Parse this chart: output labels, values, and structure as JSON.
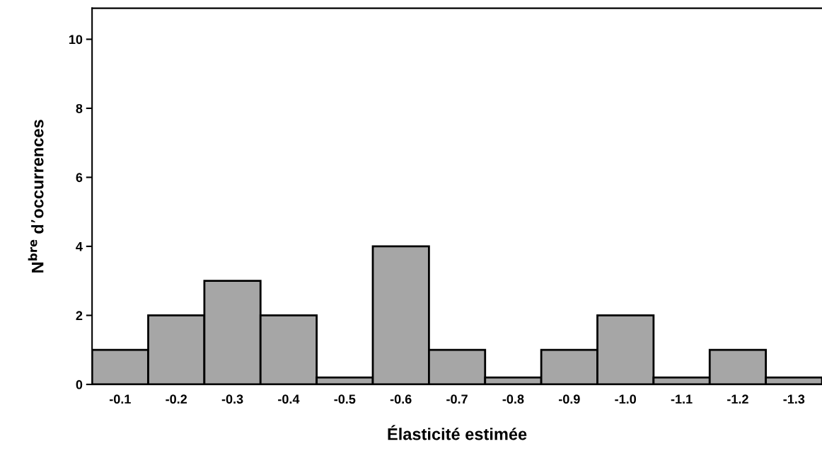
{
  "chart_data": {
    "type": "bar",
    "xlabel": "Élasticité estimée",
    "ylabel": "N$^{bre}$ d’occurrences",
    "categories": [
      "-0.1",
      "-0.2",
      "-0.3",
      "-0.4",
      "-0.5",
      "-0.6",
      "-0.7",
      "-0.8",
      "-0.9",
      "-1.0",
      "-1.1",
      "-1.2",
      "-1.3"
    ],
    "values": [
      1,
      2,
      3,
      2,
      0.2,
      4,
      1,
      0.2,
      1,
      2,
      0.2,
      1,
      0.2
    ],
    "color": "#a6a6a6",
    "ylim": [
      0,
      10.9
    ],
    "yticks": [
      0,
      2,
      4,
      6,
      8,
      10
    ],
    "grid": false
  }
}
